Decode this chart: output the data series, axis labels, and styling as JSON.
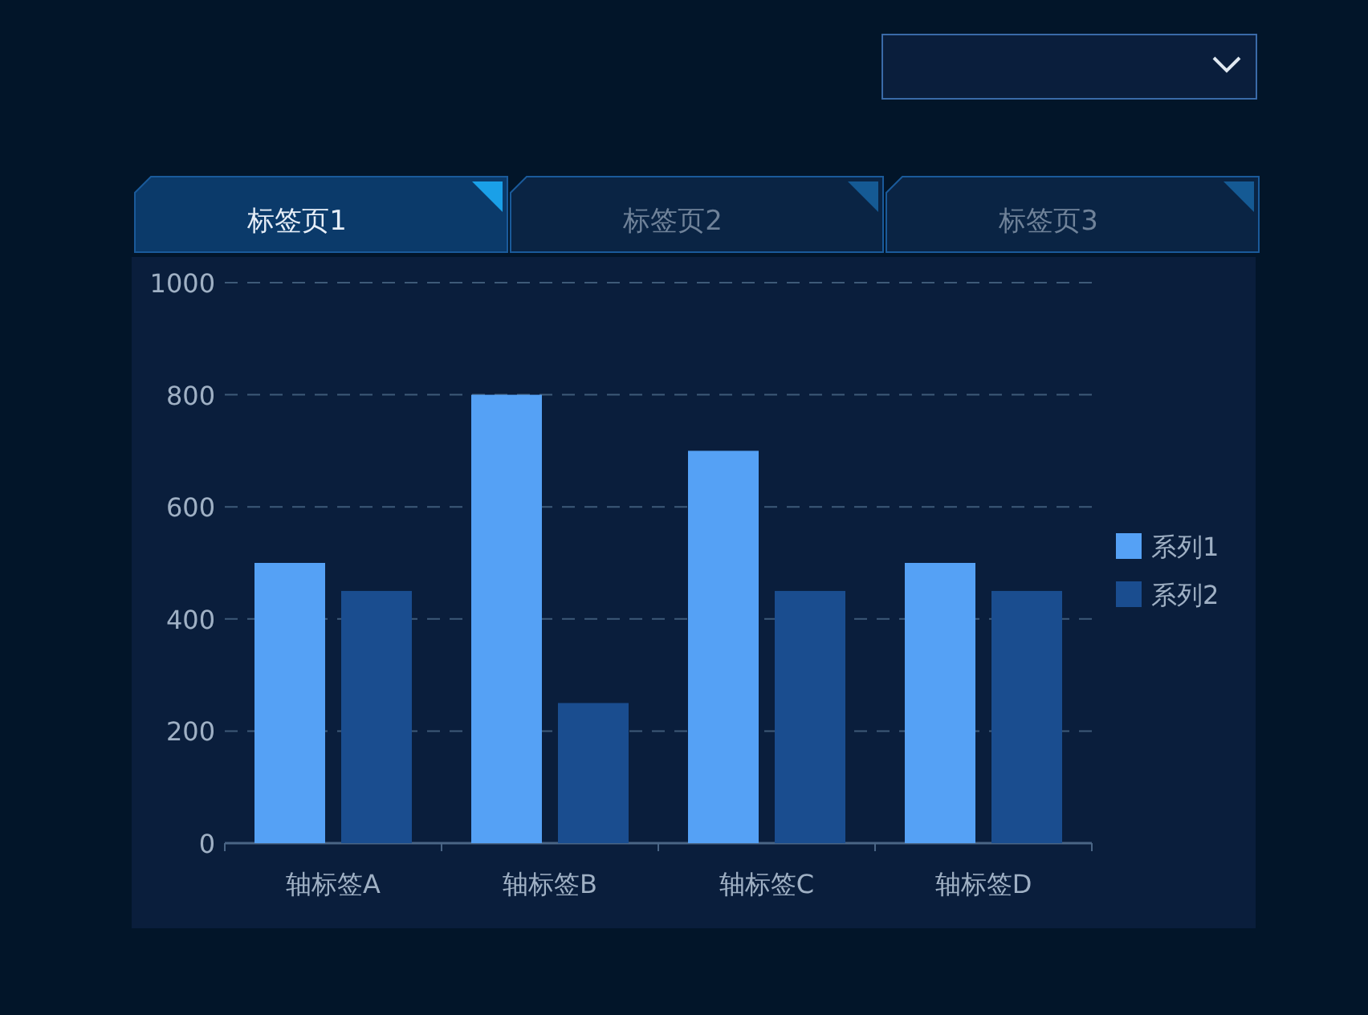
{
  "chart_data": {
    "type": "bar",
    "categories": [
      "轴标签A",
      "轴标签B",
      "轴标签C",
      "轴标签D"
    ],
    "series": [
      {
        "name": "系列1",
        "color": "#55a1f5",
        "values": [
          500,
          800,
          700,
          500
        ]
      },
      {
        "name": "系列2",
        "color": "#1a4d8f",
        "values": [
          450,
          250,
          450,
          450
        ]
      }
    ],
    "ylim": [
      0,
      1000
    ],
    "yticks": [
      0,
      200,
      400,
      600,
      800,
      1000
    ],
    "grid": "y",
    "legend": "right",
    "annotations": [
      "标签页1",
      "标签页2",
      "标签页3"
    ]
  }
}
